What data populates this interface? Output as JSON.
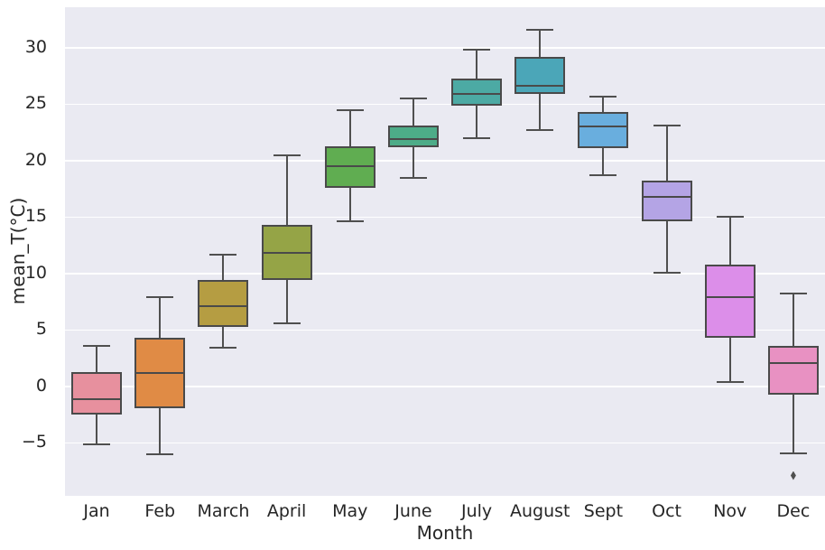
{
  "figure": {
    "background": "#ffffff",
    "plot_background": "#eaeaf2",
    "grid_color": "#ffffff",
    "line_color": "#4f4f4f",
    "box_edge_color": "#4a4a4a",
    "text_color": "#262626"
  },
  "chart_data": {
    "type": "boxplot",
    "title": "",
    "xlabel": "Month",
    "ylabel": "mean_T(°C)",
    "ylim": [
      -9.7,
      33.6
    ],
    "grid": "horizontal-white-on-gray",
    "legend": "none",
    "yticks": [
      {
        "v": -5,
        "label": "−5"
      },
      {
        "v": 0,
        "label": "0"
      },
      {
        "v": 5,
        "label": "5"
      },
      {
        "v": 10,
        "label": "10"
      },
      {
        "v": 15,
        "label": "15"
      },
      {
        "v": 20,
        "label": "20"
      },
      {
        "v": 25,
        "label": "25"
      },
      {
        "v": 30,
        "label": "30"
      }
    ],
    "categories": [
      "Jan",
      "Feb",
      "March",
      "April",
      "May",
      "June",
      "July",
      "August",
      "Sept",
      "Oct",
      "Nov",
      "Dec"
    ],
    "boxes": [
      {
        "month": "Jan",
        "whislo": -5.1,
        "q1": -2.5,
        "med": -1.1,
        "q3": 1.3,
        "whishi": 3.6,
        "fliers": [],
        "color": "#e7909e"
      },
      {
        "month": "Feb",
        "whislo": -6.0,
        "q1": -1.9,
        "med": 1.2,
        "q3": 4.3,
        "whishi": 7.9,
        "fliers": [],
        "color": "#e08b45"
      },
      {
        "month": "March",
        "whislo": 3.4,
        "q1": 5.3,
        "med": 7.1,
        "q3": 9.4,
        "whishi": 11.7,
        "fliers": [],
        "color": "#b59d42"
      },
      {
        "month": "April",
        "whislo": 5.6,
        "q1": 9.4,
        "med": 11.8,
        "q3": 14.3,
        "whishi": 20.5,
        "fliers": [],
        "color": "#95a446"
      },
      {
        "month": "May",
        "whislo": 14.6,
        "q1": 17.6,
        "med": 19.5,
        "q3": 21.3,
        "whishi": 24.5,
        "fliers": [],
        "color": "#60ad51"
      },
      {
        "month": "June",
        "whislo": 18.5,
        "q1": 21.2,
        "med": 21.9,
        "q3": 23.1,
        "whishi": 25.5,
        "fliers": [],
        "color": "#4dac88"
      },
      {
        "month": "July",
        "whislo": 22.0,
        "q1": 24.9,
        "med": 25.9,
        "q3": 27.3,
        "whishi": 29.8,
        "fliers": [],
        "color": "#4caaa4"
      },
      {
        "month": "August",
        "whislo": 22.7,
        "q1": 25.9,
        "med": 26.6,
        "q3": 29.2,
        "whishi": 31.6,
        "fliers": [],
        "color": "#4ba6b8"
      },
      {
        "month": "Sept",
        "whislo": 18.7,
        "q1": 21.1,
        "med": 23.0,
        "q3": 24.3,
        "whishi": 25.7,
        "fliers": [],
        "color": "#69aede"
      },
      {
        "month": "Oct",
        "whislo": 10.1,
        "q1": 14.6,
        "med": 16.8,
        "q3": 18.2,
        "whishi": 23.1,
        "fliers": [],
        "color": "#b4a4e5"
      },
      {
        "month": "Nov",
        "whislo": 0.4,
        "q1": 4.3,
        "med": 7.9,
        "q3": 10.8,
        "whishi": 15.0,
        "fliers": [],
        "color": "#dc8ee9"
      },
      {
        "month": "Dec",
        "whislo": -5.9,
        "q1": -0.7,
        "med": 2.1,
        "q3": 3.6,
        "whishi": 8.2,
        "fliers": [
          -7.9
        ],
        "color": "#e891c2"
      }
    ]
  }
}
